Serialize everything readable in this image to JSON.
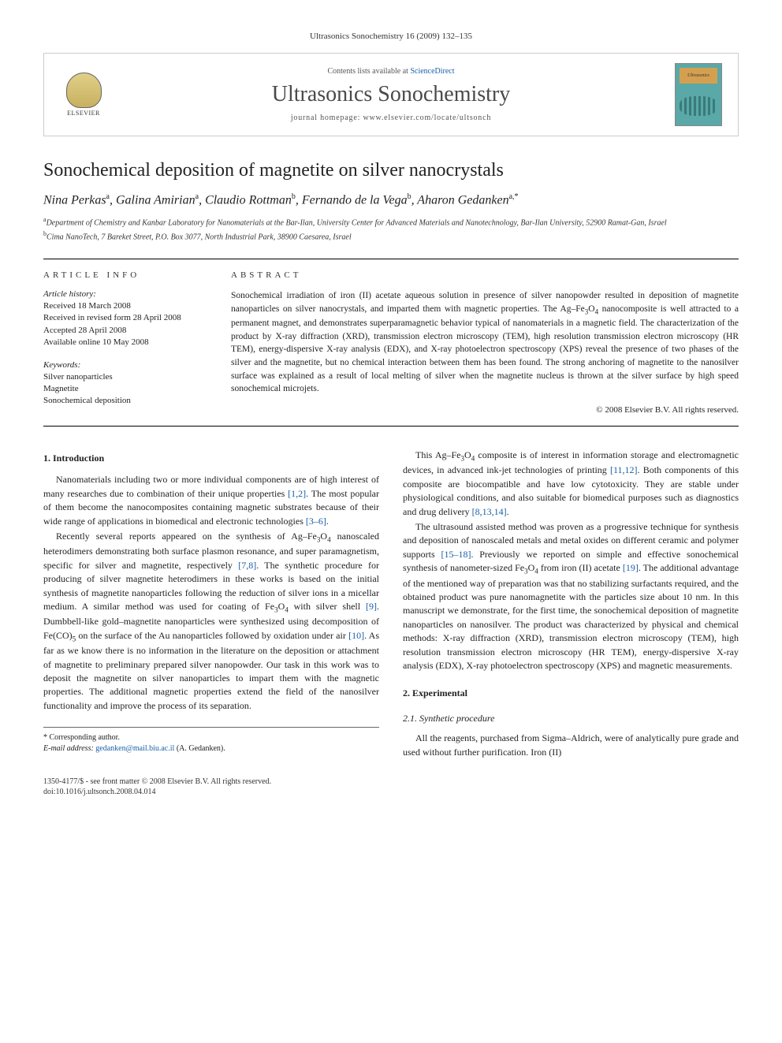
{
  "journal": {
    "citation": "Ultrasonics Sonochemistry 16 (2009) 132–135",
    "contents_line_prefix": "Contents lists available at ",
    "contents_link": "ScienceDirect",
    "title": "Ultrasonics Sonochemistry",
    "homepage_prefix": "journal homepage: ",
    "homepage": "www.elsevier.com/locate/ultsonch",
    "publisher": "ELSEVIER",
    "cover_label": "Ultrasonics"
  },
  "article": {
    "title": "Sonochemical deposition of magnetite on silver nanocrystals",
    "authors_html": "Nina Perkas<sup>a</sup>, Galina Amirian<sup>a</sup>, Claudio Rottman<sup>b</sup>, Fernando de la Vega<sup>b</sup>, Aharon Gedanken<sup>a,*</sup>",
    "affiliations": [
      {
        "sup": "a",
        "text": "Department of Chemistry and Kanbar Laboratory for Nanomaterials at the Bar-Ilan, University Center for Advanced Materials and Nanotechnology, Bar-Ilan University, 52900 Ramat-Gan, Israel"
      },
      {
        "sup": "b",
        "text": "Cima NanoTech, 7 Bareket Street, P.O. Box 3077, North Industrial Park, 38900 Caesarea, Israel"
      }
    ]
  },
  "info": {
    "heading": "ARTICLE INFO",
    "history_label": "Article history:",
    "history": [
      "Received 18 March 2008",
      "Received in revised form 28 April 2008",
      "Accepted 28 April 2008",
      "Available online 10 May 2008"
    ],
    "keywords_label": "Keywords:",
    "keywords": [
      "Silver nanoparticles",
      "Magnetite",
      "Sonochemical deposition"
    ]
  },
  "abstract": {
    "heading": "ABSTRACT",
    "body_html": "Sonochemical irradiation of iron (II) acetate aqueous solution in presence of silver nanopowder resulted in deposition of magnetite nanoparticles on silver nanocrystals, and imparted them with magnetic properties. The Ag–Fe<sub>3</sub>O<sub>4</sub> nanocomposite is well attracted to a permanent magnet, and demonstrates superparamagnetic behavior typical of nanomaterials in a magnetic field. The characterization of the product by X-ray diffraction (XRD), transmission electron microscopy (TEM), high resolution transmission electron microscopy (HR TEM), energy-dispersive X-ray analysis (EDX), and X-ray photoelectron spectroscopy (XPS) reveal the presence of two phases of the silver and the magnetite, but no chemical interaction between them has been found. The strong anchoring of magnetite to the nanosilver surface was explained as a result of local melting of silver when the magnetite nucleus is thrown at the silver surface by high speed sonochemical microjets.",
    "copyright": "© 2008 Elsevier B.V. All rights reserved."
  },
  "body": {
    "intro_heading": "1. Introduction",
    "intro_paras": [
      "Nanomaterials including two or more individual components are of high interest of many researches due to combination of their unique properties <a href=\"#\">[1,2]</a>. The most popular of them become the nanocomposites containing magnetic substrates because of their wide range of applications in biomedical and electronic technologies <a href=\"#\">[3–6]</a>.",
      "Recently several reports appeared on the synthesis of Ag–Fe<sub>3</sub>O<sub>4</sub> nanoscaled heterodimers demonstrating both surface plasmon resonance, and super paramagnetism, specific for silver and magnetite, respectively <a href=\"#\">[7,8]</a>. The synthetic procedure for producing of silver magnetite heterodimers in these works is based on the initial synthesis of magnetite nanoparticles following the reduction of silver ions in a micellar medium. A similar method was used for coating of Fe<sub>3</sub>O<sub>4</sub> with silver shell <a href=\"#\">[9]</a>. Dumbbell-like gold–magnetite nanoparticles were synthesized using decomposition of Fe(CO)<sub>5</sub> on the surface of the Au nanoparticles followed by oxidation under air <a href=\"#\">[10]</a>. As far as we know there is no information in the literature on the deposition or attachment of magnetite to preliminary prepared silver nanopowder. Our task in this work was to deposit the magnetite on silver nanoparticles to impart them with the magnetic properties. The additional magnetic properties extend the field of the nanosilver functionality and improve the process of its separation.",
      "This Ag–Fe<sub>3</sub>O<sub>4</sub> composite is of interest in information storage and electromagnetic devices, in advanced ink-jet technologies of printing <a href=\"#\">[11,12]</a>. Both components of this composite are biocompatible and have low cytotoxicity. They are stable under physiological conditions, and also suitable for biomedical purposes such as diagnostics and drug delivery <a href=\"#\">[8,13,14]</a>.",
      "The ultrasound assisted method was proven as a progressive technique for synthesis and deposition of nanoscaled metals and metal oxides on different ceramic and polymer supports <a href=\"#\">[15–18]</a>. Previously we reported on simple and effective sonochemical synthesis of nanometer-sized Fe<sub>3</sub>O<sub>4</sub> from iron (II) acetate <a href=\"#\">[19]</a>. The additional advantage of the mentioned way of preparation was that no stabilizing surfactants required, and the obtained product was pure nanomagnetite with the particles size about 10 nm. In this manuscript we demonstrate, for the first time, the sonochemical deposition of magnetite nanoparticles on nanosilver. The product was characterized by physical and chemical methods: X-ray diffraction (XRD), transmission electron microscopy (TEM), high resolution transmission electron microscopy (HR TEM), energy-dispersive X-ray analysis (EDX), X-ray photoelectron spectroscopy (XPS) and magnetic measurements."
    ],
    "exp_heading": "2. Experimental",
    "exp_sub_heading": "2.1. Synthetic procedure",
    "exp_para": "All the reagents, purchased from Sigma–Aldrich, were of analytically pure grade and used without further purification. Iron (II)"
  },
  "corresp": {
    "star": "* Corresponding author.",
    "email_label": "E-mail address:",
    "email": "gedanken@mail.biu.ac.il",
    "email_owner": "(A. Gedanken)."
  },
  "footer": {
    "line1": "1350-4177/$ - see front matter © 2008 Elsevier B.V. All rights reserved.",
    "line2": "doi:10.1016/j.ultsonch.2008.04.014"
  },
  "colors": {
    "link": "#1a5ea8",
    "text": "#222222",
    "rule": "#000000",
    "cover_bg": "#5aa8a8"
  }
}
